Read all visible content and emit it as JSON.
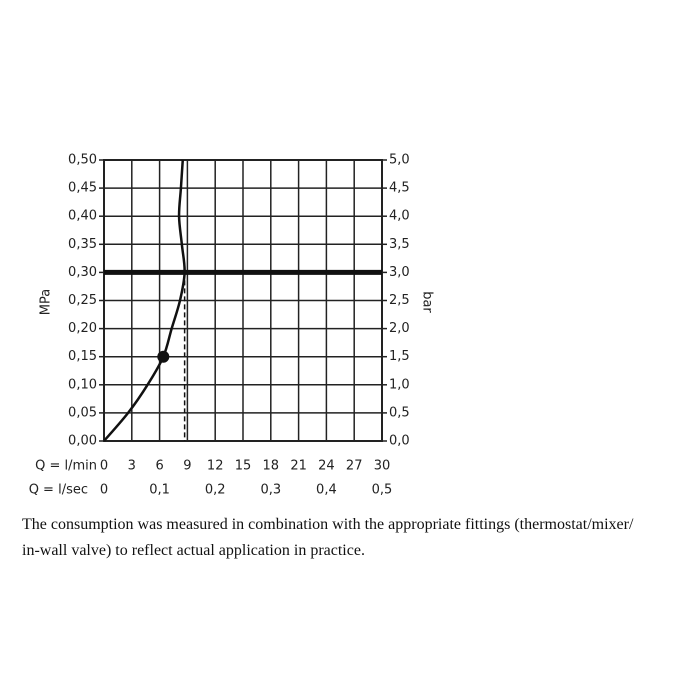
{
  "chart_data": {
    "type": "line",
    "y_label": "MPa",
    "y2_label": "bar",
    "x_label": "Q = l/min",
    "x2_label": "Q = l/sec",
    "xlim": [
      0,
      30
    ],
    "xticks": [
      0,
      3,
      6,
      9,
      12,
      15,
      18,
      21,
      24,
      27,
      30
    ],
    "x2lim": [
      0,
      0.5
    ],
    "x2ticks": [
      {
        "value": 0,
        "label": "0"
      },
      {
        "value": 0.1,
        "label": "0,1"
      },
      {
        "value": 0.2,
        "label": "0,2"
      },
      {
        "value": 0.3,
        "label": "0,3"
      },
      {
        "value": 0.4,
        "label": "0,4"
      },
      {
        "value": 0.5,
        "label": "0,5"
      }
    ],
    "ylim": [
      0,
      0.5
    ],
    "yticks": [
      {
        "value": 0,
        "label": "0,00"
      },
      {
        "value": 0.05,
        "label": "0,05"
      },
      {
        "value": 0.1,
        "label": "0,10"
      },
      {
        "value": 0.15,
        "label": "0,15"
      },
      {
        "value": 0.2,
        "label": "0,20"
      },
      {
        "value": 0.25,
        "label": "0,25"
      },
      {
        "value": 0.3,
        "label": "0,30"
      },
      {
        "value": 0.35,
        "label": "0,35"
      },
      {
        "value": 0.4,
        "label": "0,40"
      },
      {
        "value": 0.45,
        "label": "0,45"
      },
      {
        "value": 0.5,
        "label": "0,50"
      }
    ],
    "y2lim": [
      0,
      5
    ],
    "y2ticks": [
      {
        "value": 0,
        "label": "0,0"
      },
      {
        "value": 0.5,
        "label": "0,5"
      },
      {
        "value": 1,
        "label": "1,0"
      },
      {
        "value": 1.5,
        "label": "1,5"
      },
      {
        "value": 2,
        "label": "2,0"
      },
      {
        "value": 2.5,
        "label": "2,5"
      },
      {
        "value": 3,
        "label": "3,0"
      },
      {
        "value": 3.5,
        "label": "3,5"
      },
      {
        "value": 4,
        "label": "4,0"
      },
      {
        "value": 4.5,
        "label": "4,5"
      },
      {
        "value": 5,
        "label": "5,0"
      }
    ],
    "grid": true,
    "series": [
      {
        "color": "#111111",
        "x": [
          0,
          2.6,
          4.7,
          6.4,
          7.3,
          8.2,
          8.7,
          8.4,
          8.1,
          8.3,
          8.5
        ],
        "values": [
          0,
          0.05,
          0.1,
          0.15,
          0.2,
          0.25,
          0.3,
          0.35,
          0.4,
          0.45,
          0.5
        ]
      }
    ],
    "operating_point": {
      "x": 6.4,
      "y": 0.15
    },
    "reference_y": 0.3,
    "dashed_x": 8.7
  },
  "caption": [
    "The consumption was measured in combination with the appropriate fittings (thermostat/mixer/",
    "in-wall valve) to reflect actual application in practice."
  ]
}
